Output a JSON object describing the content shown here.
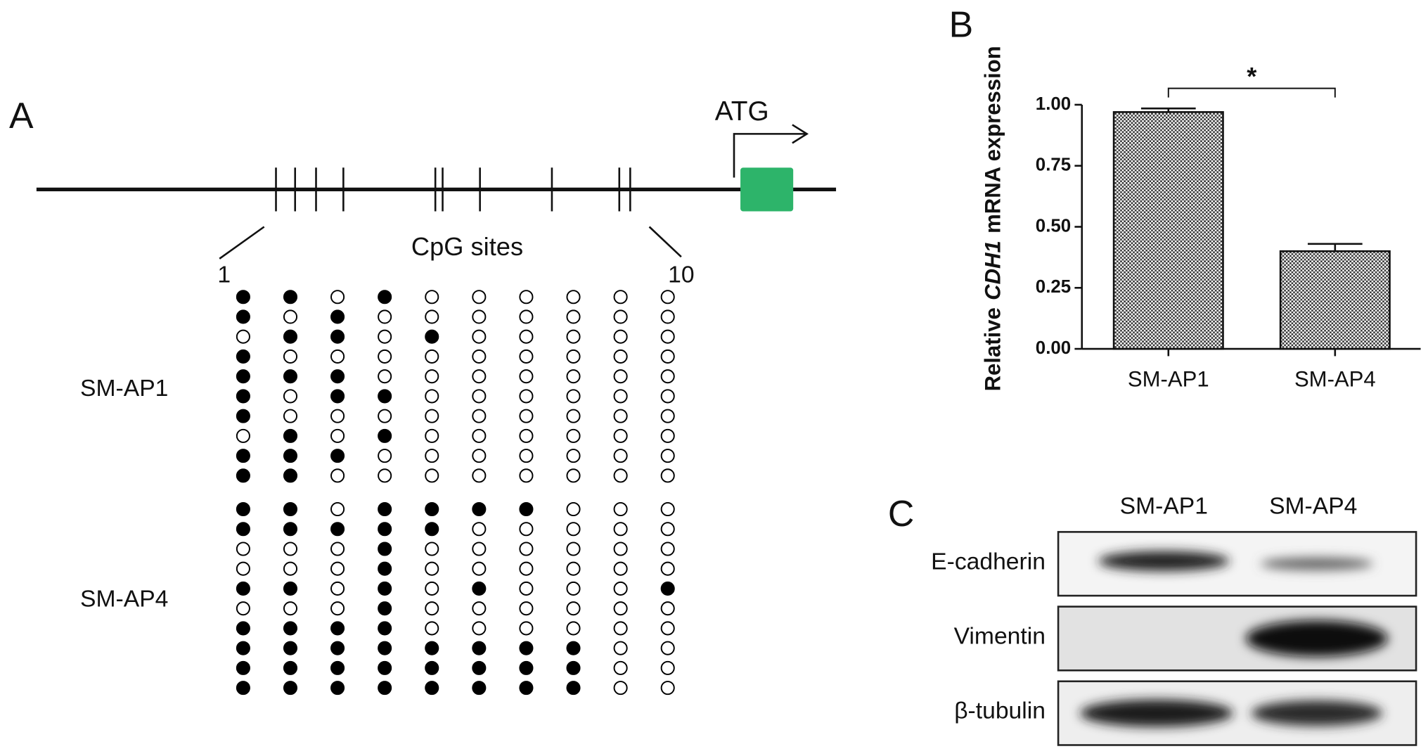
{
  "panel_a": {
    "letter": "A",
    "atg": "ATG",
    "cpg_label": "CpG sites",
    "first_site": "1",
    "last_site": "10",
    "groups": [
      {
        "name": "SM-AP1",
        "rows": [
          [
            1,
            1,
            0,
            1,
            0,
            0,
            0,
            0,
            0,
            0
          ],
          [
            1,
            0,
            1,
            0,
            0,
            0,
            0,
            0,
            0,
            0
          ],
          [
            0,
            1,
            1,
            0,
            1,
            0,
            0,
            0,
            0,
            0
          ],
          [
            1,
            0,
            0,
            0,
            0,
            0,
            0,
            0,
            0,
            0
          ],
          [
            1,
            1,
            1,
            0,
            0,
            0,
            0,
            0,
            0,
            0
          ],
          [
            1,
            0,
            1,
            1,
            0,
            0,
            0,
            0,
            0,
            0
          ],
          [
            1,
            0,
            0,
            0,
            0,
            0,
            0,
            0,
            0,
            0
          ],
          [
            0,
            1,
            0,
            1,
            0,
            0,
            0,
            0,
            0,
            0
          ],
          [
            1,
            1,
            1,
            0,
            0,
            0,
            0,
            0,
            0,
            0
          ],
          [
            1,
            1,
            0,
            0,
            0,
            0,
            0,
            0,
            0,
            0
          ]
        ]
      },
      {
        "name": "SM-AP4",
        "rows": [
          [
            1,
            1,
            0,
            1,
            1,
            1,
            1,
            0,
            0,
            0
          ],
          [
            1,
            1,
            1,
            1,
            1,
            0,
            0,
            0,
            0,
            0
          ],
          [
            0,
            0,
            0,
            1,
            0,
            0,
            0,
            0,
            0,
            0
          ],
          [
            0,
            0,
            0,
            1,
            0,
            0,
            0,
            0,
            0,
            0
          ],
          [
            1,
            1,
            0,
            1,
            0,
            1,
            0,
            0,
            0,
            1
          ],
          [
            0,
            0,
            0,
            1,
            0,
            0,
            0,
            0,
            0,
            0
          ],
          [
            1,
            1,
            1,
            1,
            0,
            0,
            0,
            0,
            0,
            0
          ],
          [
            1,
            1,
            1,
            1,
            1,
            1,
            1,
            1,
            0,
            0
          ],
          [
            1,
            1,
            1,
            1,
            1,
            1,
            1,
            1,
            0,
            0
          ],
          [
            1,
            1,
            1,
            1,
            1,
            1,
            1,
            1,
            0,
            0
          ]
        ]
      }
    ]
  },
  "chart_data": {
    "type": "bar",
    "letter": "B",
    "ylabel": {
      "prefix": "Relative",
      "gene": "CDH1",
      "suffix": "mRNA expression"
    },
    "categories": [
      "SM-AP1",
      "SM-AP4"
    ],
    "values": [
      0.97,
      0.4
    ],
    "errors": [
      0.015,
      0.03
    ],
    "annotation": "*",
    "ylim": [
      0,
      1
    ],
    "yticks": [
      {
        "value": 0,
        "label": "0.00"
      },
      {
        "value": 0.25,
        "label": "0.25"
      },
      {
        "value": 0.5,
        "label": "0.50"
      },
      {
        "value": 0.75,
        "label": "0.75"
      },
      {
        "value": 1,
        "label": "1.00"
      }
    ],
    "color": "#666666"
  },
  "panel_c": {
    "letter": "C",
    "lanes": [
      "SM-AP1",
      "SM-AP4"
    ],
    "blots": [
      "E-cadherin",
      "Vimentin",
      "β-tubulin"
    ]
  }
}
